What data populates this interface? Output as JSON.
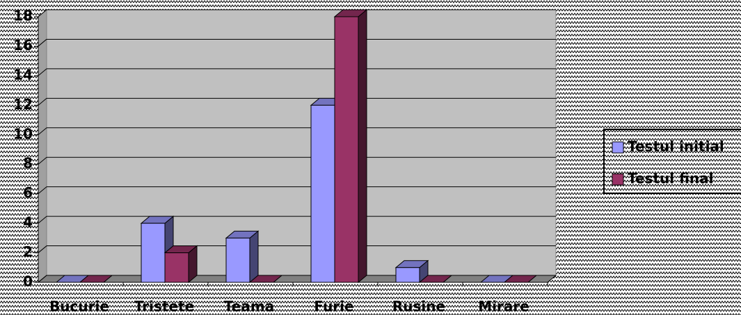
{
  "chart_data": {
    "type": "bar3d",
    "categories": [
      "Bucurie",
      "Tristete",
      "Teama",
      "Furie",
      "Rusine",
      "Mirare"
    ],
    "series": [
      {
        "name": "Testul initial",
        "color": "#9999ff",
        "values": [
          0,
          4,
          3,
          12,
          1,
          0
        ]
      },
      {
        "name": "Testul final",
        "color": "#993366",
        "values": [
          0,
          2,
          0,
          18,
          0,
          0
        ]
      }
    ],
    "ylim": [
      0,
      18
    ],
    "yticks": [
      0,
      2,
      4,
      6,
      8,
      10,
      12,
      14,
      16,
      18
    ],
    "grid": true,
    "legend": "right"
  }
}
